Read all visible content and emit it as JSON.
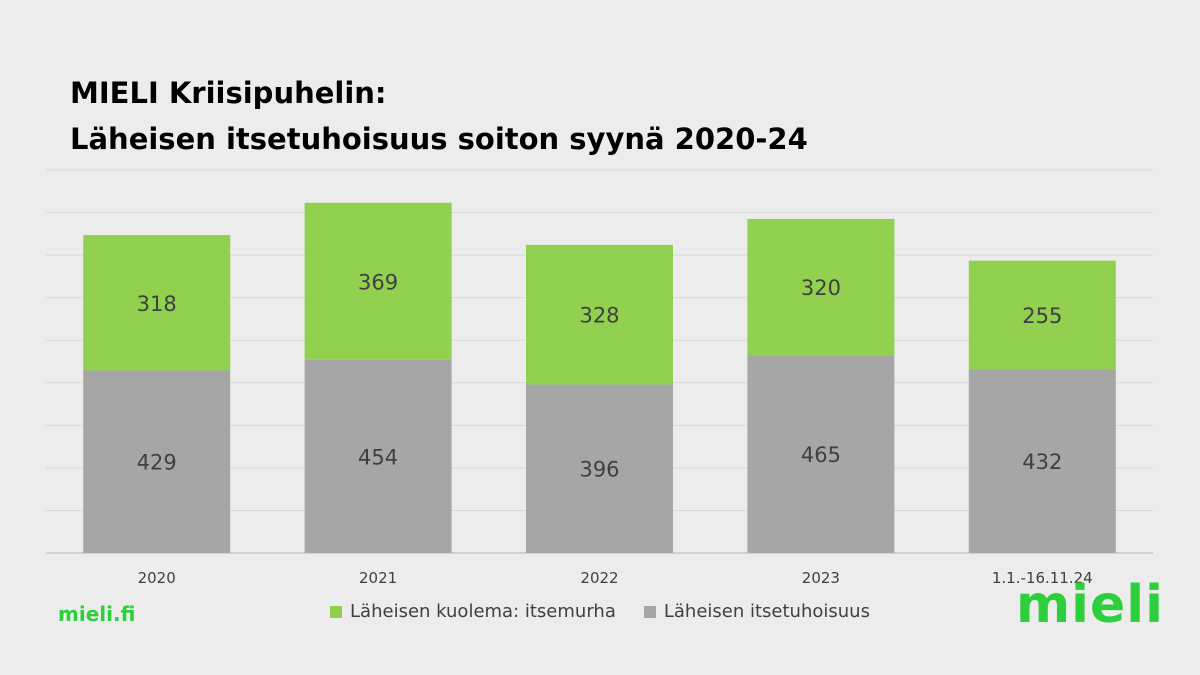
{
  "title_line1": "MIELI Kriisipuhelin:",
  "title_line2": "Läheisen itsetuhoisuus soiton syynä 2020-24",
  "site": "mieli.fi",
  "logo": "mieli",
  "colors": {
    "green": "#92d050",
    "gray": "#a6a6a6",
    "brand": "#2dcf3c"
  },
  "chart_data": {
    "type": "bar",
    "stacked": true,
    "categories": [
      "2020",
      "2021",
      "2022",
      "2023",
      "1.1.-16.11.24"
    ],
    "series": [
      {
        "name": "Läheisen itsetuhoisuus",
        "color": "#a6a6a6",
        "values": [
          429,
          454,
          396,
          465,
          432
        ]
      },
      {
        "name": "Läheisen kuolema: itsemurha",
        "color": "#92d050",
        "values": [
          318,
          369,
          328,
          320,
          255
        ]
      }
    ],
    "legend_order": [
      "Läheisen kuolema: itsemurha",
      "Läheisen itsetuhoisuus"
    ],
    "legend_position": "bottom",
    "ylim": [
      0,
      900
    ],
    "grid": true,
    "data_labels": true
  }
}
